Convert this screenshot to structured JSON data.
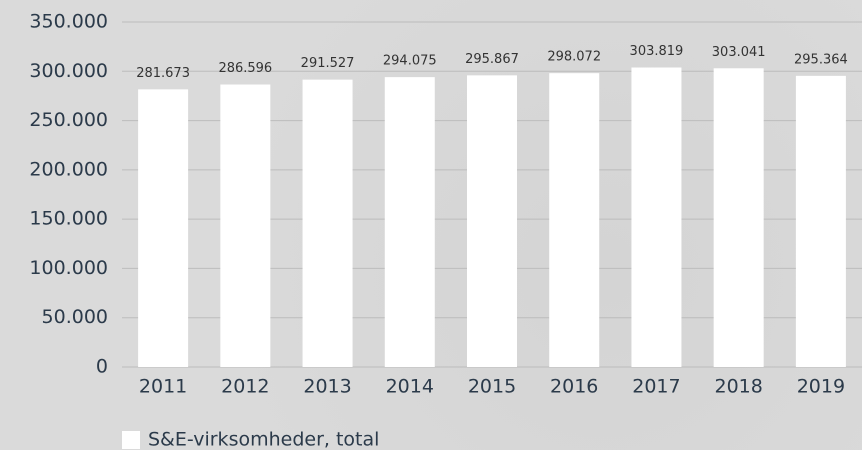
{
  "chart_data": {
    "type": "bar",
    "categories": [
      "2011",
      "2012",
      "2013",
      "2014",
      "2015",
      "2016",
      "2017",
      "2018",
      "2019"
    ],
    "series": [
      {
        "name": "S&E-virksomheder, total",
        "color": "#ffffff",
        "values": [
          281673,
          286596,
          291527,
          294075,
          295867,
          298072,
          303819,
          303041,
          295364
        ],
        "value_labels": [
          "281.673",
          "286.596",
          "291.527",
          "294.075",
          "295.867",
          "298.072",
          "303.819",
          "303.041",
          "295.364"
        ]
      }
    ],
    "ylim": [
      0,
      350000
    ],
    "yticks": [
      0,
      {
        "value": 50000,
        "label": "50.000"
      },
      {
        "value": 100000,
        "label": "100.000"
      },
      {
        "value": 150000,
        "label": "150.000"
      },
      {
        "value": 200000,
        "label": "200.000"
      },
      {
        "value": 250000,
        "label": "250.000"
      },
      {
        "value": 300000,
        "label": "300.000"
      },
      {
        "value": 350000,
        "label": "350.000"
      }
    ],
    "grid": true
  }
}
